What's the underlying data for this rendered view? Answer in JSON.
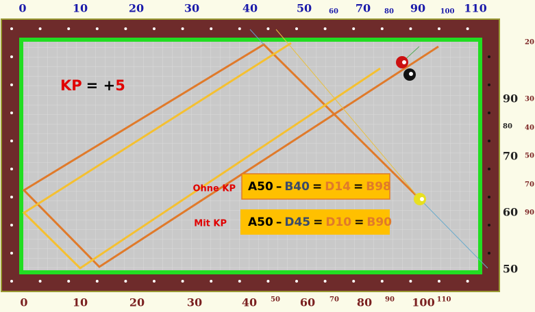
{
  "top_scale": [
    0,
    10,
    20,
    30,
    40,
    50,
    60,
    70,
    80,
    90,
    100,
    110
  ],
  "bottom_scale": [
    0,
    10,
    20,
    30,
    40,
    50,
    60,
    70,
    80,
    90,
    100,
    110
  ],
  "right_scale": [
    20,
    90,
    30,
    80,
    40,
    70,
    50,
    70,
    60,
    90,
    50
  ],
  "kp": {
    "name": "KP",
    "sign": "= +",
    "value": "5"
  },
  "notes": [
    {
      "label": "Ohne KP",
      "parts": [
        "A50",
        "–",
        "B40",
        "=",
        "D14",
        "=",
        "B98"
      ]
    },
    {
      "label": "Mit KP",
      "parts": [
        "A50",
        "–",
        "D45",
        "=",
        "D10",
        "=",
        "B90"
      ]
    }
  ]
}
